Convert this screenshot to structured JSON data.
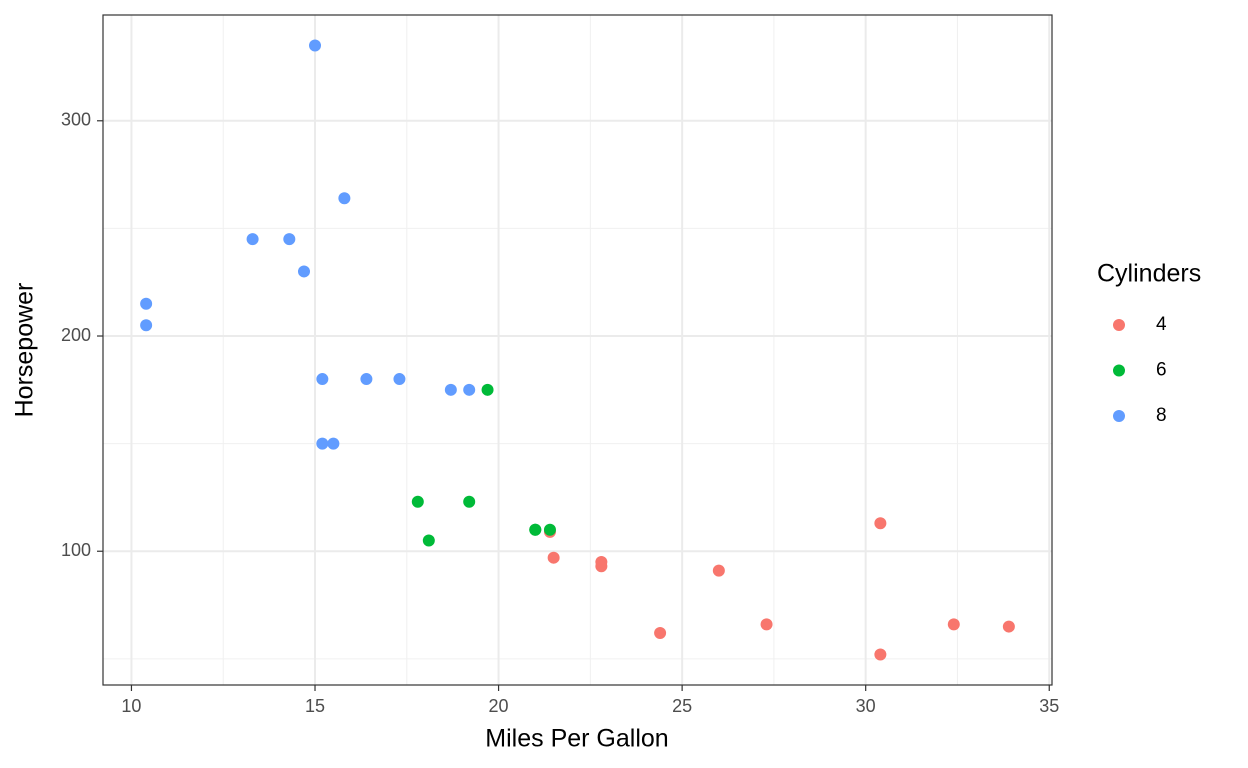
{
  "chart_data": {
    "type": "scatter",
    "x_label": "Miles Per Gallon",
    "y_label": "Horsepower",
    "legend_title": "Cylinders",
    "legend_position": "right",
    "grid": true,
    "xlim": [
      9.225,
      35.075
    ],
    "xticks": [
      10,
      15,
      20,
      25,
      30,
      35
    ],
    "ylim": [
      37.85,
      349.15
    ],
    "yticks": [
      100,
      200,
      300
    ],
    "series": [
      {
        "name": "4",
        "color": "#F8766D",
        "x": [
          22.8,
          24.4,
          22.8,
          32.4,
          30.4,
          33.9,
          21.5,
          27.3,
          26.0,
          30.4,
          21.4
        ],
        "values": [
          93,
          62,
          95,
          66,
          52,
          65,
          97,
          66,
          91,
          113,
          109
        ]
      },
      {
        "name": "6",
        "color": "#00BA38",
        "x": [
          21.0,
          21.0,
          21.4,
          18.1,
          19.2,
          17.8,
          19.7
        ],
        "values": [
          110,
          110,
          110,
          105,
          123,
          123,
          175
        ]
      },
      {
        "name": "8",
        "color": "#619CFF",
        "x": [
          18.7,
          14.3,
          16.4,
          17.3,
          15.2,
          10.4,
          10.4,
          14.7,
          15.5,
          15.2,
          13.3,
          19.2,
          15.8,
          15.0
        ],
        "values": [
          175,
          245,
          180,
          180,
          180,
          205,
          215,
          230,
          150,
          150,
          245,
          175,
          264,
          335
        ]
      }
    ]
  }
}
